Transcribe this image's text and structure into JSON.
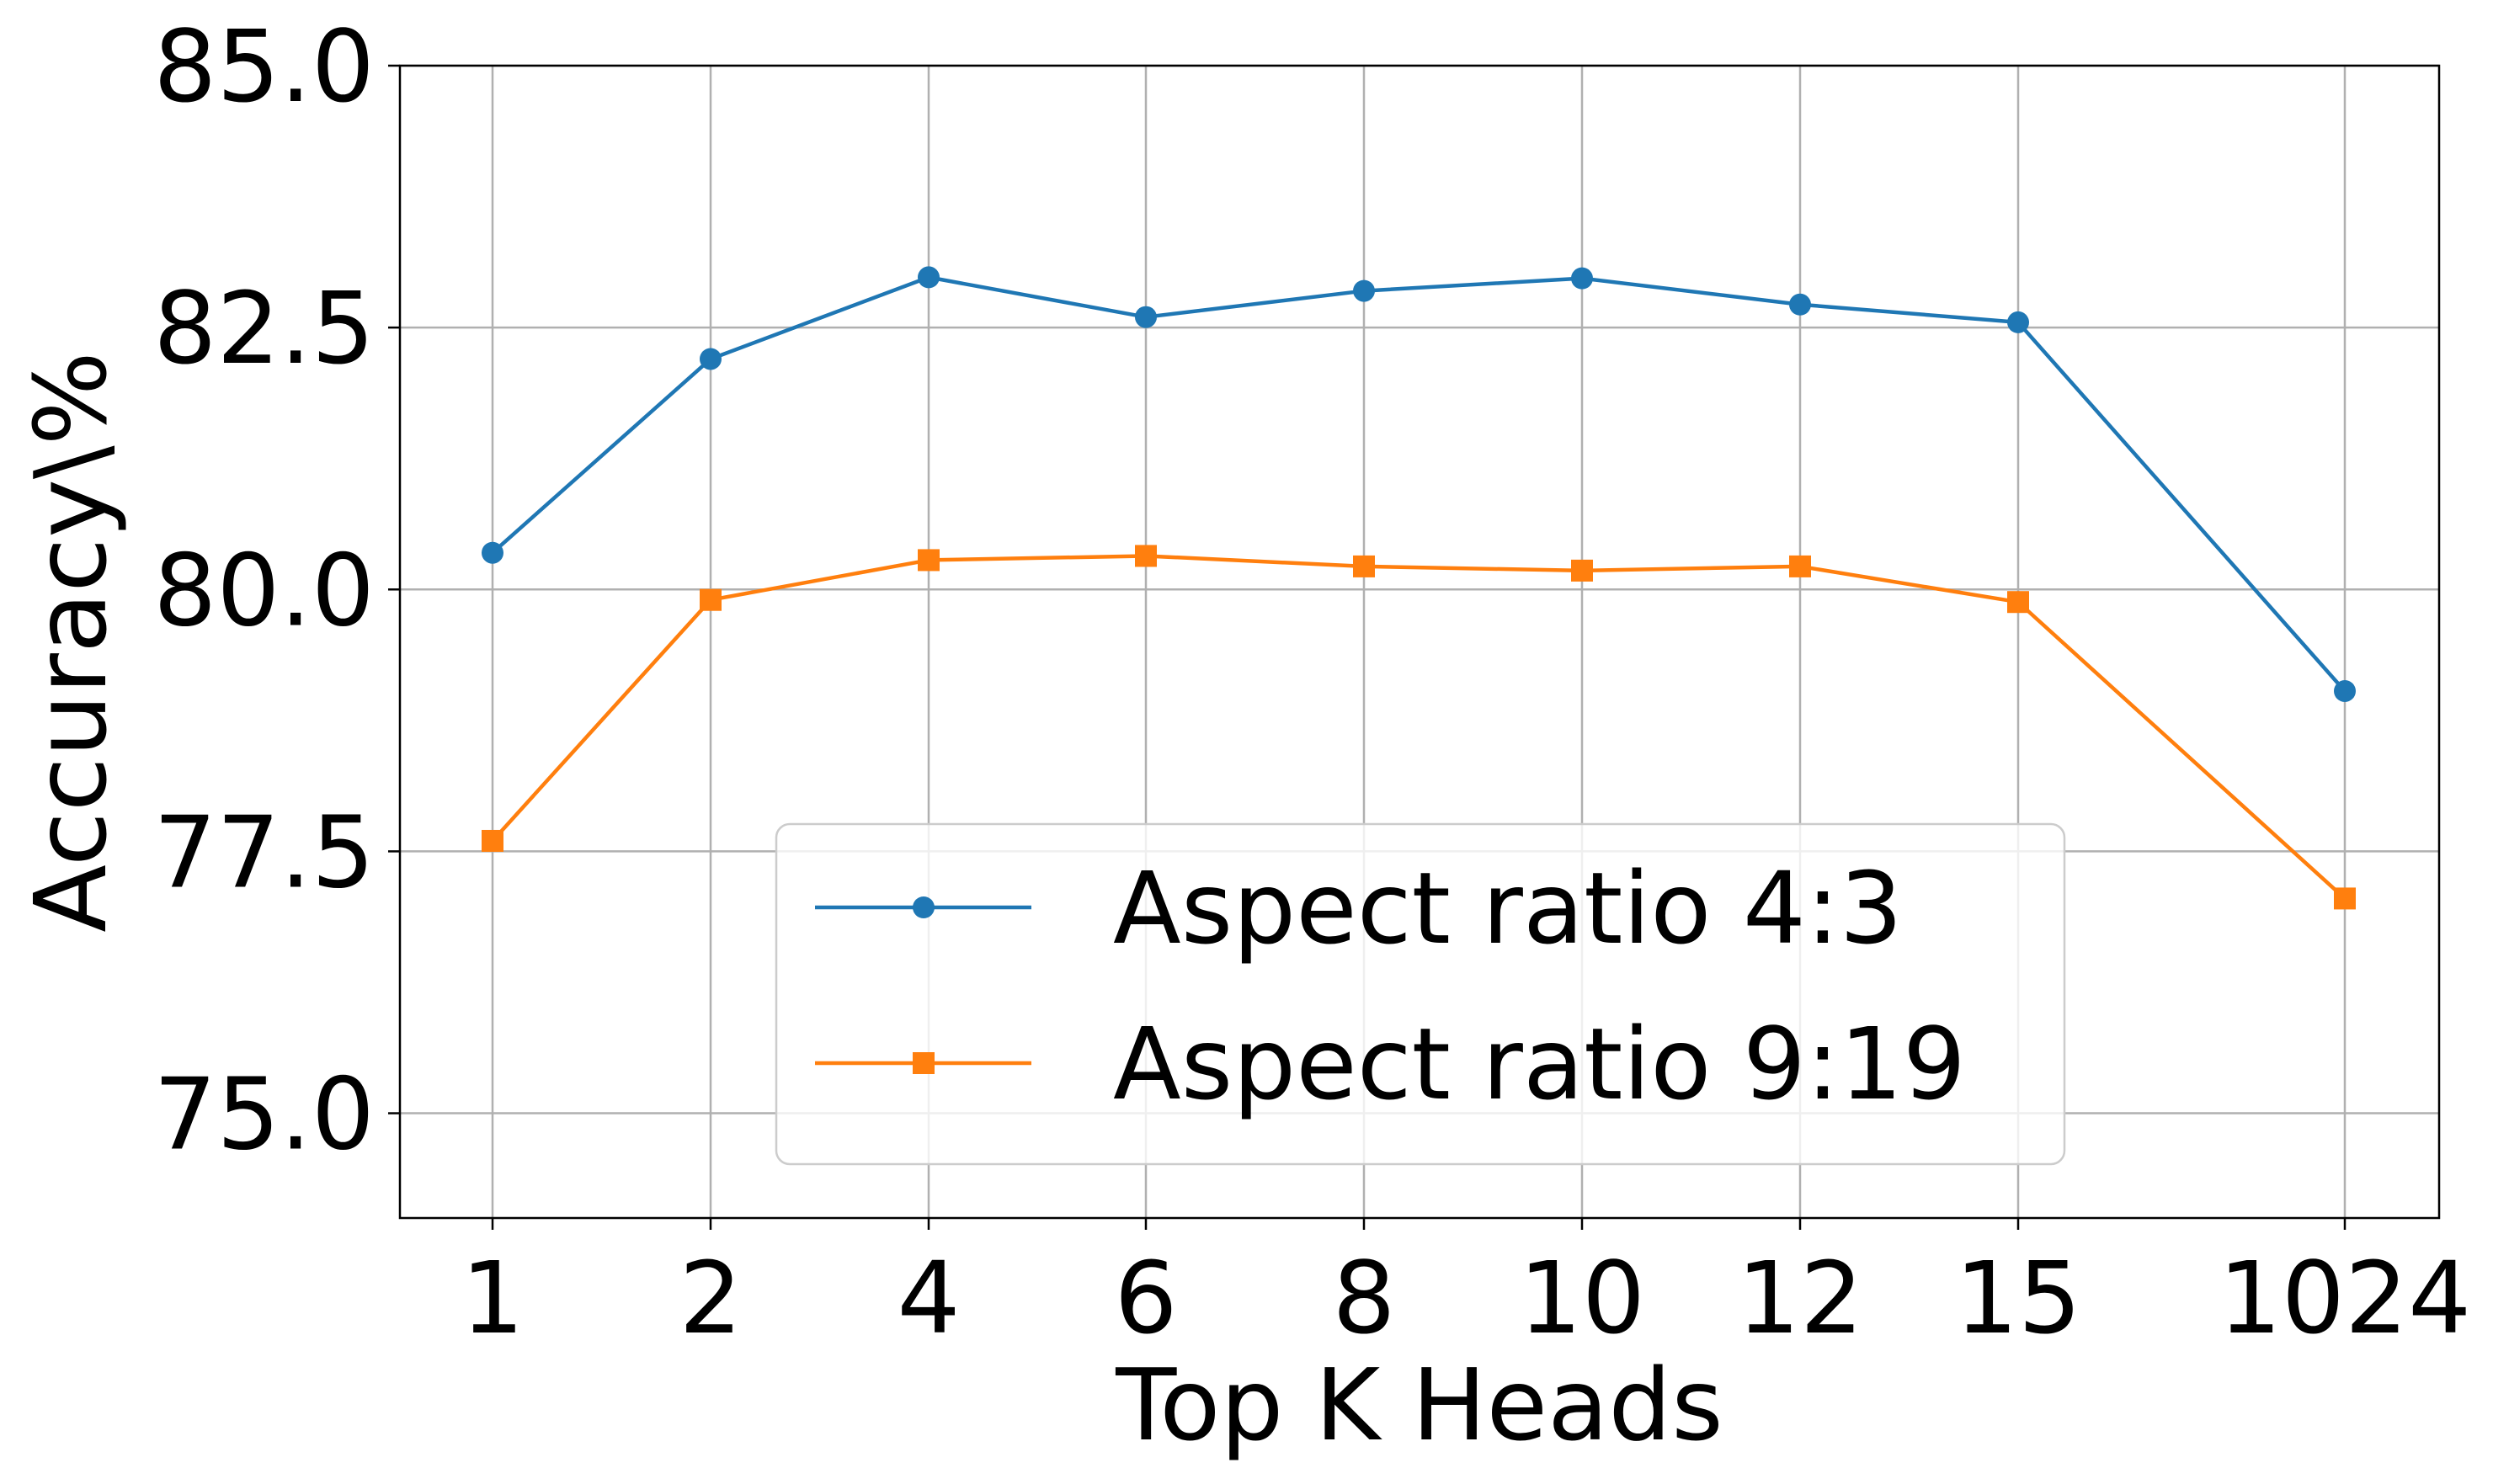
{
  "chart_data": {
    "type": "line",
    "title": "",
    "xlabel": "Top K Heads",
    "ylabel": "Accuracy\\%",
    "categories": [
      "1",
      "2",
      "4",
      "6",
      "8",
      "10",
      "12",
      "15",
      "1024"
    ],
    "ylim": [
      74.0,
      85.0
    ],
    "yticks": [
      "75.0",
      "77.5",
      "80.0",
      "82.5",
      "85.0"
    ],
    "grid": true,
    "legend_position": "lower center",
    "series": [
      {
        "name": "Aspect ratio 4:3",
        "color": "#1f77b4",
        "marker": "circle",
        "values": [
          80.35,
          82.2,
          82.98,
          82.6,
          82.85,
          82.97,
          82.72,
          82.55,
          79.03
        ]
      },
      {
        "name": "Aspect ratio 9:19",
        "color": "#ff7f0e",
        "marker": "square",
        "values": [
          77.6,
          79.9,
          80.28,
          80.32,
          80.22,
          80.18,
          80.22,
          79.88,
          77.05
        ]
      }
    ]
  }
}
